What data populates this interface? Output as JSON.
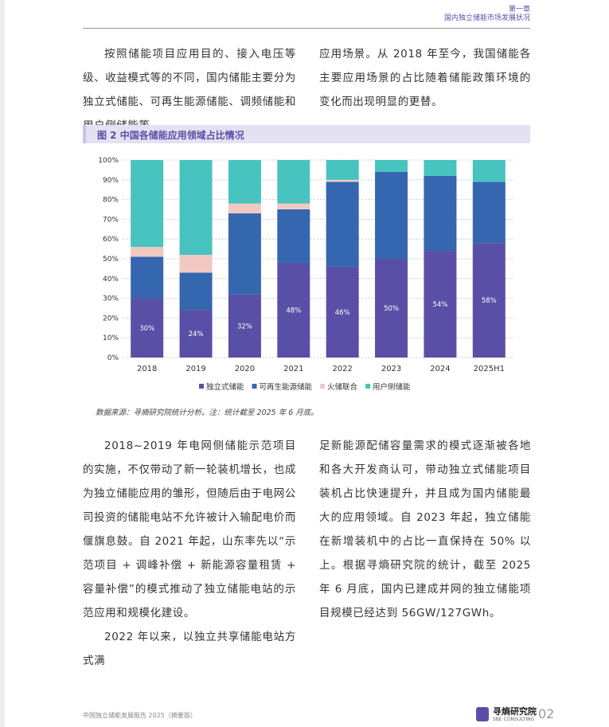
{
  "header": {
    "chapter": "第一章",
    "section": "国内独立储能市场发展状况"
  },
  "intro": {
    "left": "按照储能项目应用目的、接入电压等级、收益模式等的不同，国内储能主要分为独立式储能、可再生能源储能、调频储能和用户侧储能等",
    "right": "应用场景。从 2018 年至今，我国储能各主要应用场景的占比随着储能政策环境的变化而出现明显的更替。"
  },
  "figure_caption": "图 2 中国各储能应用领域占比情况",
  "chart_data": {
    "type": "stacked_bar",
    "categories": [
      "2018",
      "2019",
      "2020",
      "2021",
      "2022",
      "2023",
      "2024",
      "2025H1"
    ],
    "series": [
      {
        "name": "独立式储能",
        "color": "#5a4fa6",
        "values": [
          30,
          24,
          32,
          48,
          46,
          50,
          54,
          58
        ],
        "value_labels": [
          "30%",
          "24%",
          "32%",
          "48%",
          "46%",
          "50%",
          "54%",
          "58%"
        ]
      },
      {
        "name": "可再生能源储能",
        "color": "#3566b0",
        "values": [
          21,
          19,
          41,
          27,
          43,
          44,
          38,
          31
        ]
      },
      {
        "name": "火储联合",
        "color": "#f2c8c2",
        "values": [
          5,
          9,
          5,
          3,
          1,
          0,
          0,
          0
        ]
      },
      {
        "name": "用户侧储能",
        "color": "#47c4bf",
        "values": [
          44,
          48,
          22,
          22,
          10,
          6,
          8,
          11
        ]
      }
    ],
    "ylim": [
      0,
      100
    ],
    "yticks": [
      {
        "value": 0,
        "label": "0%"
      },
      {
        "value": 10,
        "label": "10%"
      },
      {
        "value": 20,
        "label": "20%"
      },
      {
        "value": 30,
        "label": "30%"
      },
      {
        "value": 40,
        "label": "40%"
      },
      {
        "value": 50,
        "label": "50%"
      },
      {
        "value": 60,
        "label": "60%"
      },
      {
        "value": 70,
        "label": "70%"
      },
      {
        "value": 80,
        "label": "80%"
      },
      {
        "value": 90,
        "label": "90%"
      },
      {
        "value": 100,
        "label": "100%"
      }
    ],
    "grid": true,
    "legend": "bottom"
  },
  "source_note": "数据来源：寻熵研究院统计分析。注：统计截至 2025 年 6 月底。",
  "body": {
    "left": [
      "2018~2019 年电网侧储能示范项目的实施，不仅带动了新一轮装机增长，也成为独立储能应用的雏形，但随后由于电网公司投资的储能电站不允许被计入输配电价而偃旗息鼓。自 2021 年起，山东率先以“示范项目 + 调峰补偿 + 新能源容量租赁 + 容量补偿”的模式推动了独立储能电站的示范应用和规模化建设。",
      "2022 年以来，以独立共享储能电站方式满"
    ],
    "right": "足新能源配储容量需求的模式逐渐被各地和各大开发商认可，带动独立式储能项目装机占比快速提升，并且成为国内储能最大的应用领域。自 2023 年起，独立储能在新增装机中的占比一直保持在 50% 以上。根据寻熵研究院的统计，截至 2025 年 6 月底，国内已建成并网的独立储能项目规模已经达到 56GW/127GWh。"
  },
  "footer": {
    "report": "中国独立储能发展报告 2025（摘要版）",
    "logo": "寻熵研究院",
    "logo_en": "SBE CONSULTING",
    "page": "02"
  }
}
